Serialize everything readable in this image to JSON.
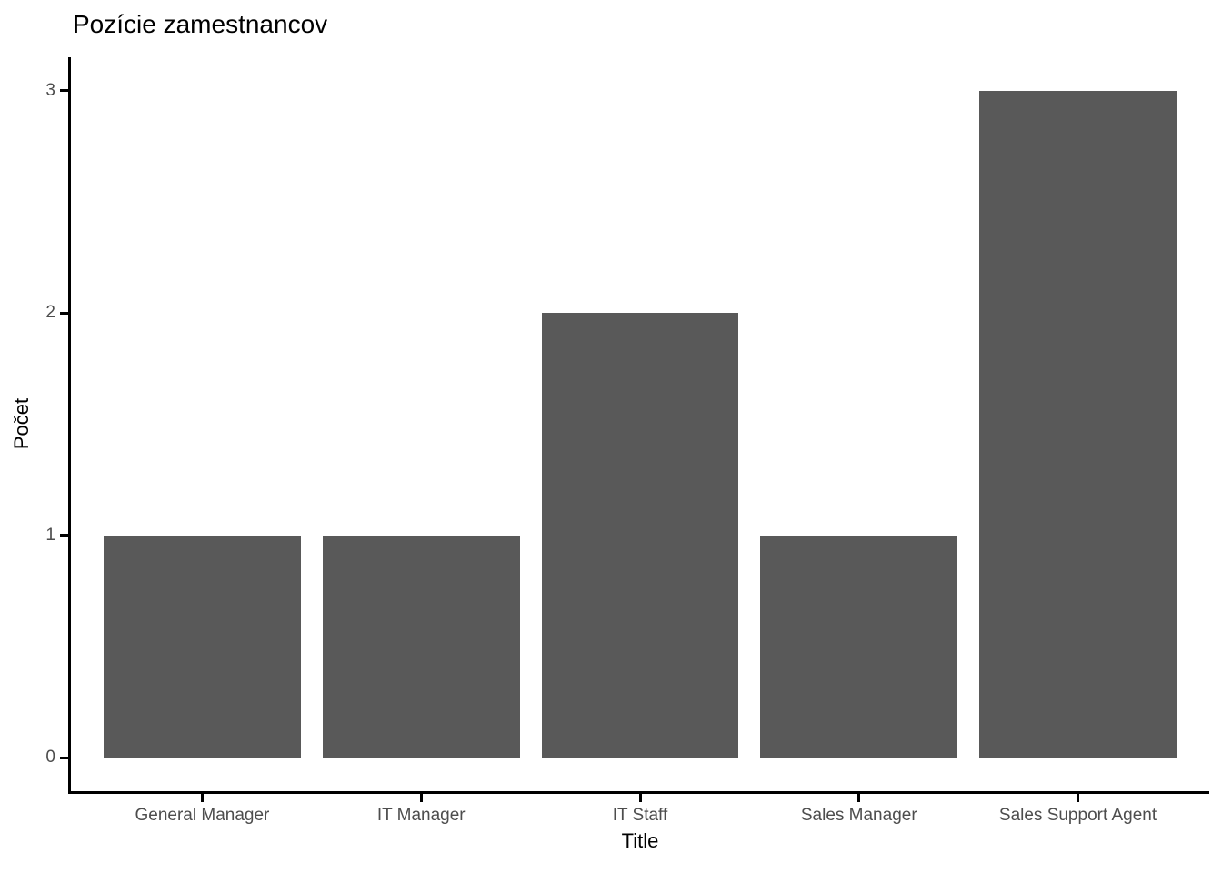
{
  "chart_data": {
    "type": "bar",
    "title": "Pozície zamestnancov",
    "xlabel": "Title",
    "ylabel": "Počet",
    "categories": [
      "General Manager",
      "IT Manager",
      "IT Staff",
      "Sales Manager",
      "Sales Support Agent"
    ],
    "values": [
      1,
      1,
      2,
      1,
      3
    ],
    "yticks": [
      0,
      1,
      2,
      3
    ],
    "ylim": [
      0,
      3
    ],
    "grid": false,
    "legend": false,
    "colors": {
      "bar_fill": "#595959",
      "axis_line": "#000000",
      "tick_mark": "#000000",
      "tick_label": "#4d4d4d",
      "title_text": "#000000",
      "background": "#ffffff"
    }
  }
}
